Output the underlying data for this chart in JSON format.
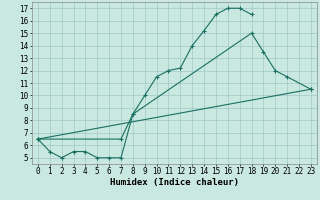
{
  "xlabel": "Humidex (Indice chaleur)",
  "background_color": "#c8e8e0",
  "grid_color": "#a0c8c8",
  "line_color": "#1a7060",
  "xlim": [
    -0.5,
    23.5
  ],
  "ylim": [
    4.5,
    17.5
  ],
  "xticks": [
    0,
    1,
    2,
    3,
    4,
    5,
    6,
    7,
    8,
    9,
    10,
    11,
    12,
    13,
    14,
    15,
    16,
    17,
    18,
    19,
    20,
    21,
    22,
    23
  ],
  "yticks": [
    5,
    6,
    7,
    8,
    9,
    10,
    11,
    12,
    13,
    14,
    15,
    16,
    17
  ],
  "curves": [
    {
      "x": [
        0,
        1,
        2,
        3,
        4,
        5,
        6,
        7,
        8,
        9,
        10,
        11,
        12,
        13,
        14,
        15,
        16,
        17,
        18
      ],
      "y": [
        6.5,
        5.5,
        5.0,
        5.5,
        5.5,
        5.0,
        5.0,
        5.0,
        8.5,
        10.0,
        11.5,
        12.0,
        12.2,
        14.0,
        15.2,
        16.5,
        17.0,
        17.0,
        16.5
      ]
    },
    {
      "x": [
        0,
        7,
        8,
        18,
        19,
        20,
        21,
        23
      ],
      "y": [
        6.5,
        6.5,
        8.5,
        15.0,
        13.5,
        12.0,
        11.5,
        10.5
      ]
    },
    {
      "x": [
        0,
        23
      ],
      "y": [
        6.5,
        10.5
      ]
    }
  ],
  "marker": "+",
  "markersize": 3,
  "linewidth": 0.8,
  "fontsize_ticks": 5.5,
  "fontsize_xlabel": 6.5
}
